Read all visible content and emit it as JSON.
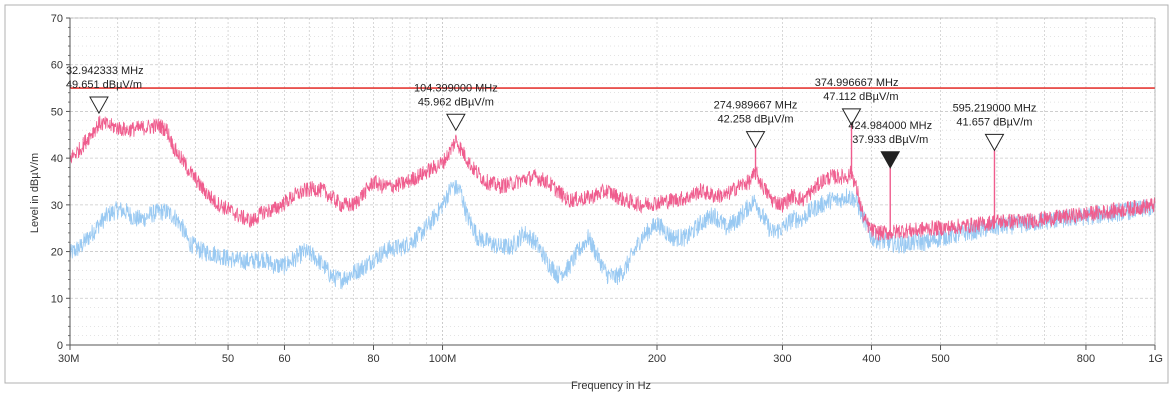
{
  "chart_data": {
    "type": "line",
    "title": "",
    "xlabel": "Frequency in Hz",
    "ylabel": "Level in dBµV/m",
    "x_scale": "log",
    "xlim": [
      30,
      1000
    ],
    "ylim": [
      0,
      70
    ],
    "grid": true,
    "x_ticks": [
      {
        "value": 30,
        "label": "30M"
      },
      {
        "value": 50,
        "label": "50"
      },
      {
        "value": 60,
        "label": "60"
      },
      {
        "value": 80,
        "label": "80"
      },
      {
        "value": 100,
        "label": "100M"
      },
      {
        "value": 200,
        "label": "200"
      },
      {
        "value": 300,
        "label": "300"
      },
      {
        "value": 400,
        "label": "400"
      },
      {
        "value": 500,
        "label": "500"
      },
      {
        "value": 800,
        "label": "800"
      },
      {
        "value": 1000,
        "label": "1G"
      }
    ],
    "y_ticks": [
      {
        "value": 0,
        "label": "0"
      },
      {
        "value": 10,
        "label": "10"
      },
      {
        "value": 20,
        "label": "20"
      },
      {
        "value": 30,
        "label": "30"
      },
      {
        "value": 40,
        "label": "40"
      },
      {
        "value": 50,
        "label": "50"
      },
      {
        "value": 60,
        "label": "60"
      },
      {
        "value": 70,
        "label": "70"
      }
    ],
    "limit_line": {
      "value": 55,
      "color": "#e53935"
    },
    "colors": {
      "horizontal_trace": "#ef5d8e",
      "vertical_trace": "#99c9f2",
      "grid": "#c8c8c8",
      "axis": "#555555",
      "marker": "#222222"
    },
    "series": [
      {
        "color": "#ef5d8e",
        "points": [
          [
            30,
            40
          ],
          [
            31,
            42
          ],
          [
            32,
            45
          ],
          [
            33,
            47.5
          ],
          [
            34,
            47
          ],
          [
            35,
            46.5
          ],
          [
            36,
            46
          ],
          [
            38,
            46.5
          ],
          [
            40,
            47
          ],
          [
            41,
            46
          ],
          [
            42,
            42
          ],
          [
            44,
            37.5
          ],
          [
            46,
            33.5
          ],
          [
            48,
            30.5
          ],
          [
            50,
            29
          ],
          [
            52,
            27.5
          ],
          [
            54,
            26.5
          ],
          [
            56,
            28.5
          ],
          [
            58,
            29
          ],
          [
            60,
            30.5
          ],
          [
            62,
            32
          ],
          [
            64,
            33
          ],
          [
            66,
            33.5
          ],
          [
            68,
            33
          ],
          [
            70,
            31.5
          ],
          [
            72,
            30
          ],
          [
            75,
            30
          ],
          [
            78,
            33
          ],
          [
            80,
            35
          ],
          [
            82,
            34
          ],
          [
            85,
            34
          ],
          [
            88,
            34.5
          ],
          [
            92,
            36
          ],
          [
            96,
            37.5
          ],
          [
            100,
            39
          ],
          [
            102,
            41
          ],
          [
            104.4,
            44
          ],
          [
            106,
            42
          ],
          [
            110,
            38
          ],
          [
            115,
            35
          ],
          [
            120,
            34
          ],
          [
            125,
            34.5
          ],
          [
            130,
            35.5
          ],
          [
            135,
            36
          ],
          [
            140,
            35
          ],
          [
            145,
            33
          ],
          [
            150,
            31
          ],
          [
            160,
            31.5
          ],
          [
            170,
            33
          ],
          [
            180,
            31
          ],
          [
            190,
            30
          ],
          [
            200,
            30.5
          ],
          [
            210,
            31
          ],
          [
            220,
            31.5
          ],
          [
            230,
            33
          ],
          [
            240,
            32
          ],
          [
            250,
            32
          ],
          [
            260,
            34
          ],
          [
            270,
            35
          ],
          [
            275,
            37
          ],
          [
            280,
            34.5
          ],
          [
            290,
            31
          ],
          [
            300,
            30
          ],
          [
            310,
            32
          ],
          [
            320,
            31
          ],
          [
            330,
            33
          ],
          [
            340,
            35
          ],
          [
            350,
            36
          ],
          [
            360,
            36
          ],
          [
            370,
            36
          ],
          [
            375,
            37
          ],
          [
            380,
            34
          ],
          [
            390,
            27
          ],
          [
            400,
            24.5
          ],
          [
            410,
            24
          ],
          [
            425,
            24
          ],
          [
            440,
            24.5
          ],
          [
            460,
            24.5
          ],
          [
            480,
            25
          ],
          [
            500,
            25
          ],
          [
            540,
            25.5
          ],
          [
            580,
            26
          ],
          [
            595,
            26.5
          ],
          [
            620,
            26.5
          ],
          [
            660,
            26.5
          ],
          [
            700,
            27
          ],
          [
            750,
            27.5
          ],
          [
            800,
            28
          ],
          [
            850,
            28.5
          ],
          [
            900,
            29
          ],
          [
            950,
            29.5
          ],
          [
            1000,
            30
          ]
        ],
        "spikes": [
          {
            "x": 274.99,
            "y": 42.258
          },
          {
            "x": 375.0,
            "y": 47.112
          },
          {
            "x": 424.98,
            "y": 37.933
          },
          {
            "x": 595.22,
            "y": 41.657
          }
        ]
      },
      {
        "color": "#99c9f2",
        "points": [
          [
            30,
            19.5
          ],
          [
            31,
            21
          ],
          [
            32,
            23.5
          ],
          [
            33,
            26
          ],
          [
            34,
            28
          ],
          [
            35,
            29
          ],
          [
            36,
            28.5
          ],
          [
            37,
            27
          ],
          [
            38,
            27
          ],
          [
            39,
            28
          ],
          [
            40,
            28.5
          ],
          [
            41,
            28.5
          ],
          [
            42,
            27.5
          ],
          [
            43,
            25.5
          ],
          [
            44,
            22
          ],
          [
            46,
            20
          ],
          [
            48,
            19.5
          ],
          [
            50,
            18.5
          ],
          [
            52,
            18
          ],
          [
            54,
            18
          ],
          [
            56,
            18.5
          ],
          [
            58,
            17
          ],
          [
            60,
            17
          ],
          [
            62,
            18.5
          ],
          [
            64,
            20
          ],
          [
            66,
            19
          ],
          [
            68,
            17
          ],
          [
            70,
            14.5
          ],
          [
            72,
            14
          ],
          [
            74,
            15
          ],
          [
            76,
            16
          ],
          [
            78,
            17
          ],
          [
            80,
            18.5
          ],
          [
            84,
            20.5
          ],
          [
            88,
            21
          ],
          [
            92,
            23
          ],
          [
            96,
            26
          ],
          [
            100,
            30
          ],
          [
            103,
            34
          ],
          [
            106,
            33
          ],
          [
            108,
            28
          ],
          [
            112,
            23
          ],
          [
            116,
            22
          ],
          [
            120,
            21
          ],
          [
            125,
            21
          ],
          [
            130,
            24
          ],
          [
            135,
            22
          ],
          [
            140,
            18
          ],
          [
            145,
            15
          ],
          [
            150,
            16.5
          ],
          [
            155,
            20
          ],
          [
            160,
            23
          ],
          [
            165,
            19
          ],
          [
            170,
            15
          ],
          [
            175,
            14.5
          ],
          [
            180,
            16
          ],
          [
            190,
            23
          ],
          [
            200,
            26
          ],
          [
            210,
            23
          ],
          [
            220,
            23
          ],
          [
            230,
            26
          ],
          [
            240,
            28
          ],
          [
            250,
            25
          ],
          [
            260,
            27
          ],
          [
            270,
            30
          ],
          [
            275,
            31
          ],
          [
            280,
            28
          ],
          [
            290,
            24
          ],
          [
            300,
            25
          ],
          [
            310,
            27
          ],
          [
            320,
            27
          ],
          [
            330,
            29
          ],
          [
            340,
            30
          ],
          [
            350,
            31
          ],
          [
            360,
            31
          ],
          [
            370,
            32
          ],
          [
            380,
            31
          ],
          [
            390,
            27
          ],
          [
            400,
            23
          ],
          [
            420,
            22
          ],
          [
            440,
            21.5
          ],
          [
            460,
            22
          ],
          [
            480,
            22
          ],
          [
            500,
            23
          ],
          [
            540,
            24
          ],
          [
            580,
            25
          ],
          [
            620,
            25.5
          ],
          [
            660,
            26
          ],
          [
            700,
            26.5
          ],
          [
            750,
            27
          ],
          [
            800,
            27.5
          ],
          [
            850,
            28
          ],
          [
            900,
            28.5
          ],
          [
            950,
            29
          ],
          [
            1000,
            29.5
          ]
        ]
      }
    ],
    "markers": [
      {
        "id": "m1",
        "x": 32.942333,
        "y": 49.651,
        "filled": false,
        "freq_label": "32.942333 MHz",
        "level_label": "49.651 dBµV/m",
        "align": "start"
      },
      {
        "id": "m2",
        "x": 104.399,
        "y": 45.962,
        "filled": false,
        "freq_label": "104.399000 MHz",
        "level_label": "45.962 dBµV/m",
        "align": "middle"
      },
      {
        "id": "m3",
        "x": 274.989667,
        "y": 42.258,
        "filled": false,
        "freq_label": "274.989667 MHz",
        "level_label": "42.258 dBµV/m",
        "align": "middle"
      },
      {
        "id": "m4",
        "x": 374.996667,
        "y": 47.112,
        "filled": false,
        "freq_label": "374.996667 MHz",
        "level_label": "47.112 dBµV/m",
        "align": "end"
      },
      {
        "id": "m5",
        "x": 424.984,
        "y": 37.933,
        "filled": true,
        "freq_label": "424.984000 MHz",
        "level_label": "37.933 dBµV/m",
        "align": "middle"
      },
      {
        "id": "m6",
        "x": 595.219,
        "y": 41.657,
        "filled": false,
        "freq_label": "595.219000 MHz",
        "level_label": "41.657 dBµV/m",
        "align": "middle"
      }
    ]
  }
}
